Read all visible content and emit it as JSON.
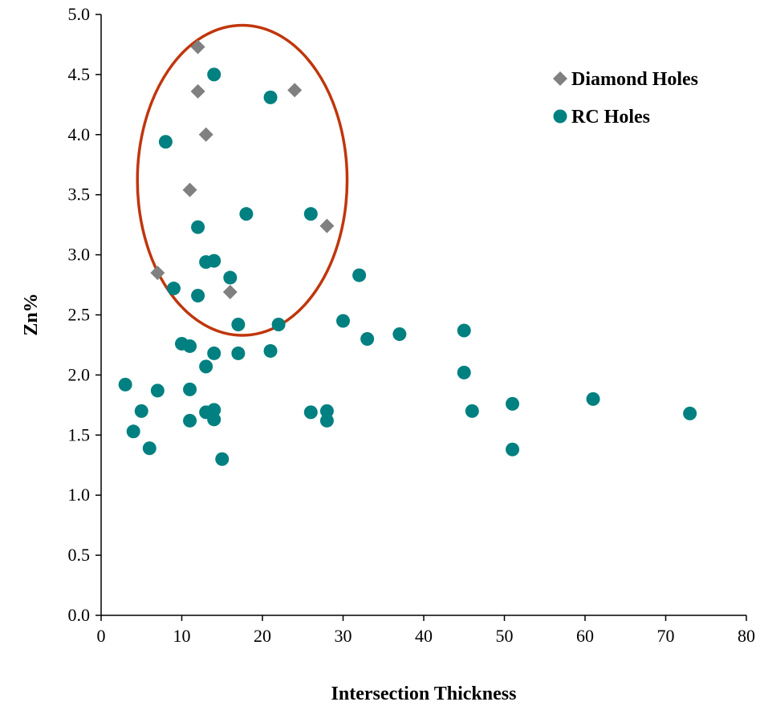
{
  "chart_data": {
    "type": "scatter",
    "title": "",
    "xlabel": "Intersection Thickness",
    "ylabel": "Zn%",
    "xlim": [
      0,
      80
    ],
    "ylim": [
      0,
      5
    ],
    "xticks": [
      "0",
      "10",
      "20",
      "30",
      "40",
      "50",
      "60",
      "70",
      "80"
    ],
    "yticks": [
      "0.0",
      "0.5",
      "1.0",
      "1.5",
      "2.0",
      "2.5",
      "3.0",
      "3.5",
      "4.0",
      "4.5",
      "5.0"
    ],
    "grid": false,
    "legend_position": "top-right",
    "series": [
      {
        "name": "Diamond Holes",
        "marker": "diamond",
        "color": "#808080",
        "points": [
          [
            12,
            4.73
          ],
          [
            12,
            4.36
          ],
          [
            24,
            4.37
          ],
          [
            13,
            4.0
          ],
          [
            11,
            3.54
          ],
          [
            28,
            3.24
          ],
          [
            7,
            2.85
          ],
          [
            16,
            2.69
          ]
        ]
      },
      {
        "name": "RC Holes",
        "marker": "circle",
        "color": "#008080",
        "points": [
          [
            14,
            4.5
          ],
          [
            21,
            4.31
          ],
          [
            8,
            3.94
          ],
          [
            18,
            3.34
          ],
          [
            26,
            3.34
          ],
          [
            12,
            3.23
          ],
          [
            13,
            2.94
          ],
          [
            14,
            2.95
          ],
          [
            32,
            2.83
          ],
          [
            16,
            2.81
          ],
          [
            9,
            2.72
          ],
          [
            12,
            2.66
          ],
          [
            30,
            2.45
          ],
          [
            17,
            2.42
          ],
          [
            22,
            2.42
          ],
          [
            37,
            2.34
          ],
          [
            45,
            2.37
          ],
          [
            33,
            2.3
          ],
          [
            10,
            2.26
          ],
          [
            11,
            2.24
          ],
          [
            21,
            2.2
          ],
          [
            14,
            2.18
          ],
          [
            17,
            2.18
          ],
          [
            13,
            2.07
          ],
          [
            45,
            2.02
          ],
          [
            3,
            1.92
          ],
          [
            7,
            1.87
          ],
          [
            11,
            1.88
          ],
          [
            61,
            1.8
          ],
          [
            51,
            1.76
          ],
          [
            5,
            1.7
          ],
          [
            14,
            1.71
          ],
          [
            13,
            1.69
          ],
          [
            26,
            1.69
          ],
          [
            28,
            1.7
          ],
          [
            46,
            1.7
          ],
          [
            73,
            1.68
          ],
          [
            11,
            1.62
          ],
          [
            14,
            1.63
          ],
          [
            28,
            1.62
          ],
          [
            4,
            1.53
          ],
          [
            6,
            1.39
          ],
          [
            51,
            1.38
          ],
          [
            15,
            1.3
          ]
        ]
      }
    ],
    "annotations": [
      {
        "type": "ellipse",
        "color": "#C0360C",
        "center": [
          17.5,
          3.62
        ],
        "radii": [
          13,
          1.29
        ]
      }
    ]
  }
}
